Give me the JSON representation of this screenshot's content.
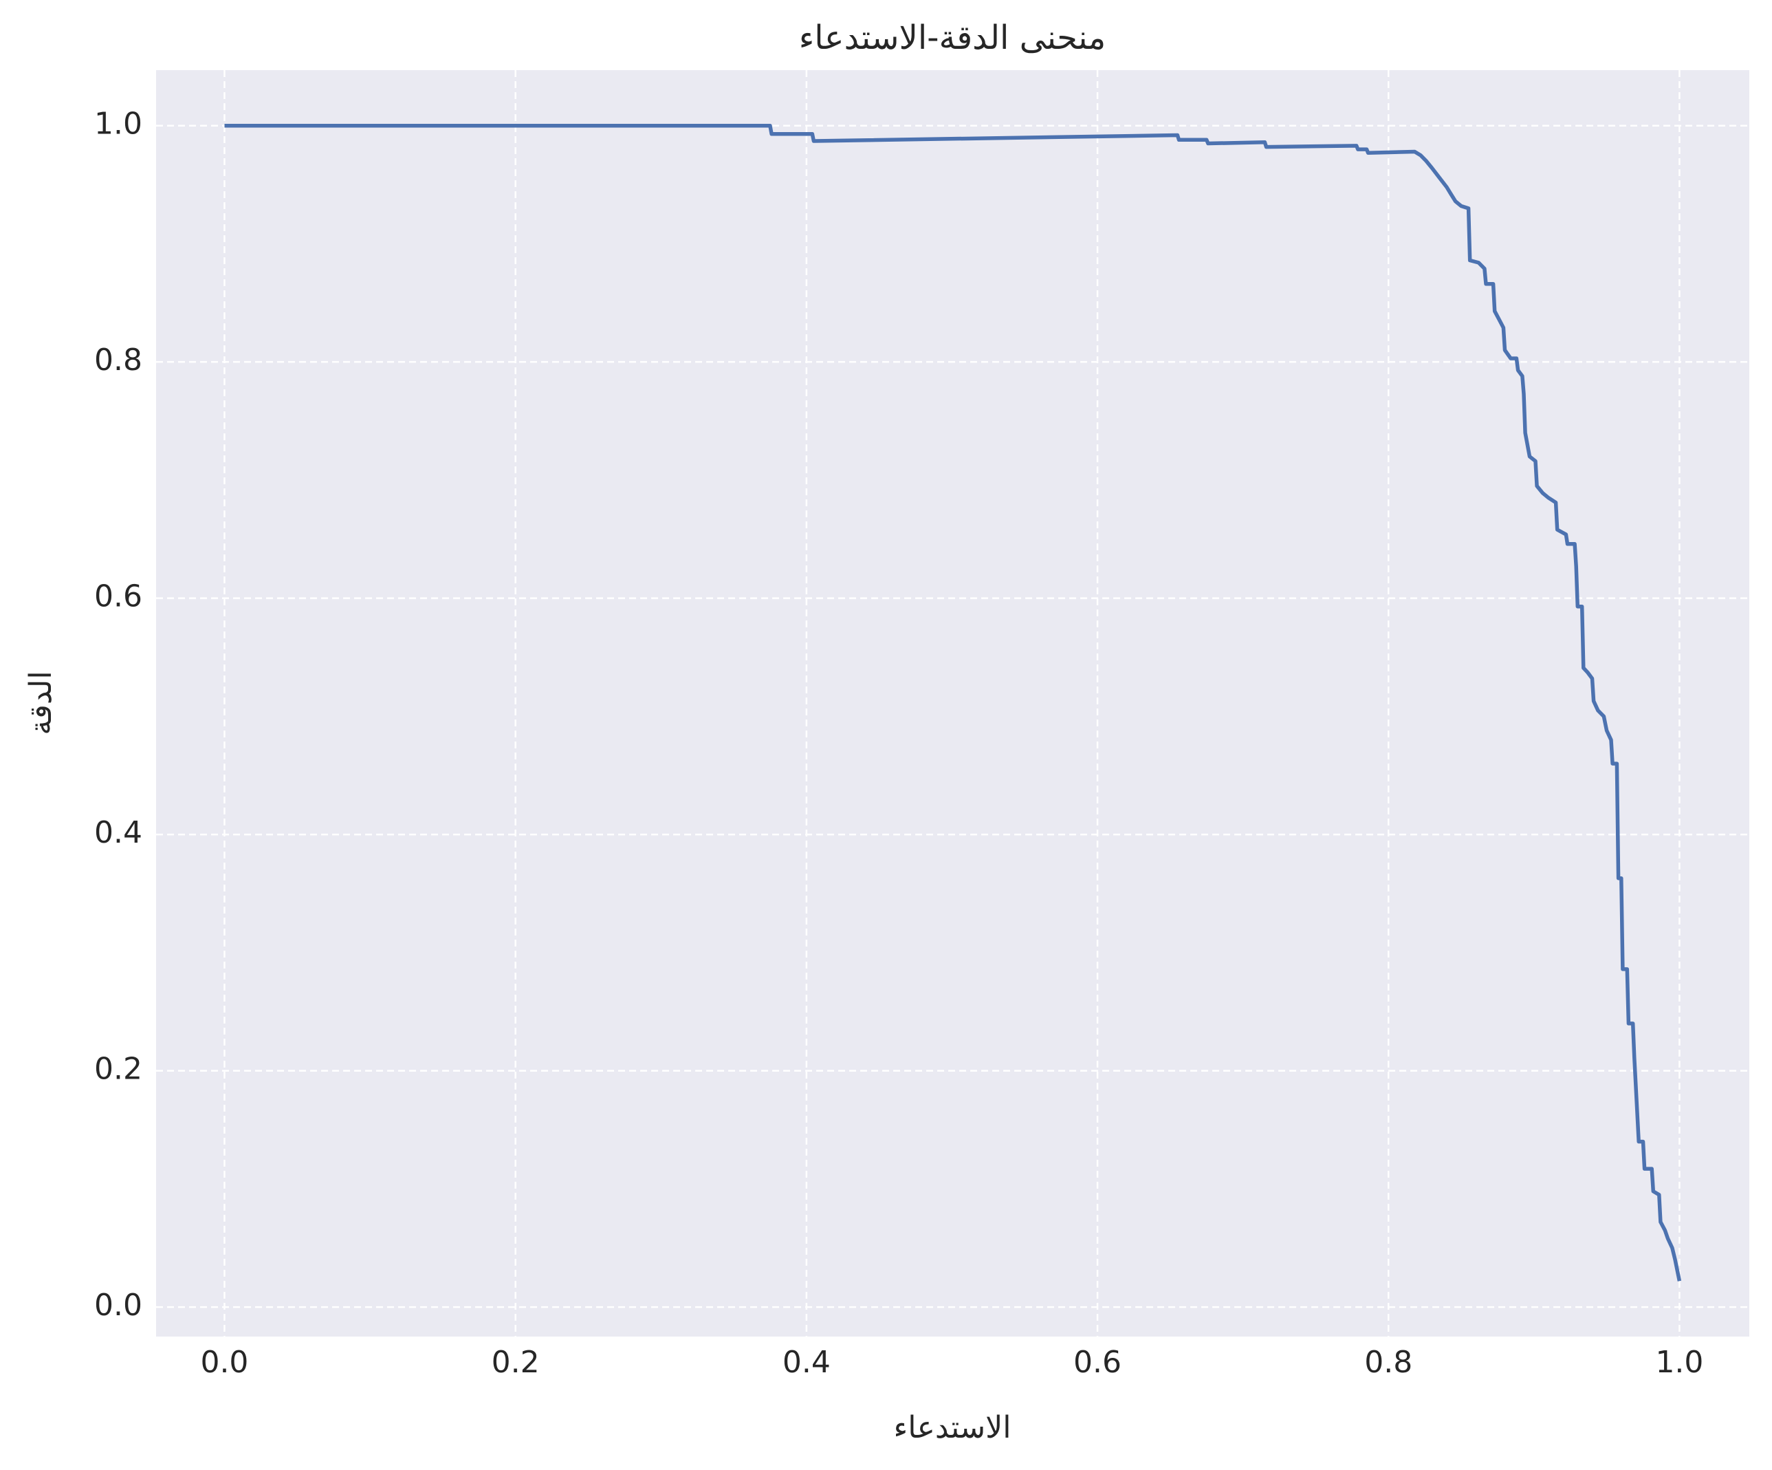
{
  "chart_data": {
    "type": "line",
    "title": "منحنى الدقة-الاستدعاء",
    "xlabel": "الاستدعاء",
    "ylabel": "الدقة",
    "color": "#4c72b0",
    "grid": true,
    "xlim": [
      -0.047,
      1.048
    ],
    "ylim": [
      -0.025,
      1.047
    ],
    "xticks": [
      {
        "value": 0,
        "label": "0.0"
      },
      0.2,
      0.4,
      0.6,
      0.8,
      {
        "value": 1,
        "label": "1.0"
      }
    ],
    "yticks": [
      {
        "value": 0,
        "label": "0.0"
      },
      0.2,
      0.4,
      0.6,
      0.8,
      {
        "value": 1,
        "label": "1.0"
      }
    ],
    "x": [
      0,
      0.375,
      0.376,
      0.404,
      0.405,
      0.655,
      0.656,
      0.675,
      0.676,
      0.715,
      0.716,
      0.778,
      0.779,
      0.785,
      0.786,
      0.818,
      0.822,
      0.826,
      0.83,
      0.835,
      0.84,
      0.843,
      0.846,
      0.85,
      0.855,
      0.856,
      0.862,
      0.866,
      0.867,
      0.872,
      0.873,
      0.876,
      0.879,
      0.88,
      0.884,
      0.888,
      0.889,
      0.892,
      0.893,
      0.894,
      0.897,
      0.901,
      0.902,
      0.906,
      0.91,
      0.915,
      0.916,
      0.922,
      0.923,
      0.928,
      0.929,
      0.93,
      0.933,
      0.934,
      0.937,
      0.94,
      0.941,
      0.944,
      0.948,
      0.95,
      0.953,
      0.954,
      0.957,
      0.958,
      0.96,
      0.961,
      0.964,
      0.965,
      0.968,
      0.969,
      0.972,
      0.975,
      0.976,
      0.981,
      0.982,
      0.986,
      0.987,
      0.99,
      0.992,
      0.995,
      0.997,
      1.0
    ],
    "values": [
      1.0,
      1.0,
      0.993,
      0.993,
      0.987,
      0.992,
      0.988,
      0.988,
      0.985,
      0.986,
      0.982,
      0.983,
      0.98,
      0.98,
      0.977,
      0.978,
      0.975,
      0.97,
      0.964,
      0.956,
      0.948,
      0.942,
      0.936,
      0.932,
      0.93,
      0.886,
      0.884,
      0.879,
      0.866,
      0.866,
      0.843,
      0.836,
      0.829,
      0.81,
      0.803,
      0.803,
      0.793,
      0.788,
      0.773,
      0.74,
      0.72,
      0.716,
      0.695,
      0.689,
      0.685,
      0.681,
      0.658,
      0.654,
      0.646,
      0.646,
      0.627,
      0.593,
      0.593,
      0.541,
      0.537,
      0.532,
      0.513,
      0.505,
      0.5,
      0.488,
      0.48,
      0.46,
      0.46,
      0.363,
      0.363,
      0.286,
      0.286,
      0.24,
      0.24,
      0.211,
      0.14,
      0.14,
      0.117,
      0.117,
      0.098,
      0.095,
      0.072,
      0.065,
      0.058,
      0.05,
      0.04,
      0.022
    ]
  }
}
